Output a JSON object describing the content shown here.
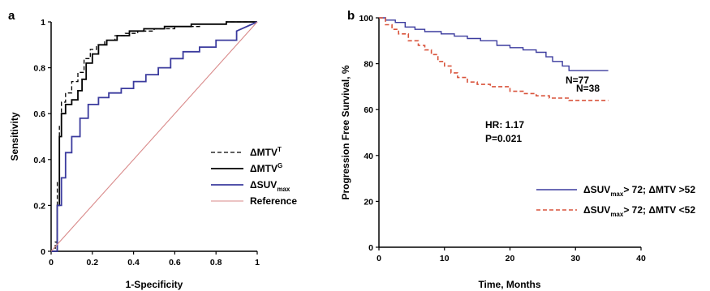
{
  "chart_data": [
    {
      "panel": "a",
      "type": "line",
      "title": "",
      "xlabel": "1-Specificity",
      "ylabel": "Sensitivity",
      "xlim": [
        0,
        1
      ],
      "ylim": [
        0,
        1
      ],
      "xticks": [
        "0",
        "0.2",
        "0.4",
        "0.6",
        "0.8",
        "1"
      ],
      "yticks": [
        "0",
        "0.2",
        "0.4",
        "0.6",
        "0.8",
        "1"
      ],
      "grid": false,
      "legend_position": "bottom-right",
      "series": [
        {
          "name": "ΔMTV",
          "name_sup": "T",
          "color": "#000000",
          "style": "dashed",
          "x": [
            0,
            0.02,
            0.02,
            0.03,
            0.03,
            0.04,
            0.04,
            0.05,
            0.05,
            0.07,
            0.07,
            0.1,
            0.1,
            0.13,
            0.13,
            0.16,
            0.16,
            0.19,
            0.19,
            0.22,
            0.22,
            0.26,
            0.26,
            0.31,
            0.31,
            0.36,
            0.36,
            0.42,
            0.42,
            0.5,
            0.5,
            0.6,
            0.6,
            0.72,
            0.72,
            0.85,
            0.85,
            1
          ],
          "y": [
            0,
            0,
            0.04,
            0.04,
            0.3,
            0.3,
            0.55,
            0.55,
            0.65,
            0.65,
            0.69,
            0.69,
            0.74,
            0.74,
            0.78,
            0.78,
            0.84,
            0.84,
            0.88,
            0.88,
            0.9,
            0.9,
            0.92,
            0.92,
            0.94,
            0.94,
            0.95,
            0.95,
            0.96,
            0.96,
            0.97,
            0.97,
            0.98,
            0.98,
            0.99,
            0.99,
            1,
            1
          ]
        },
        {
          "name": "ΔMTV",
          "name_sup": "G",
          "color": "#000000",
          "style": "solid",
          "x": [
            0,
            0.03,
            0.03,
            0.04,
            0.04,
            0.05,
            0.05,
            0.07,
            0.07,
            0.1,
            0.1,
            0.13,
            0.13,
            0.15,
            0.15,
            0.17,
            0.17,
            0.2,
            0.2,
            0.23,
            0.23,
            0.27,
            0.27,
            0.32,
            0.32,
            0.38,
            0.38,
            0.45,
            0.45,
            0.55,
            0.55,
            0.68,
            0.68,
            0.85,
            0.85,
            1
          ],
          "y": [
            0,
            0,
            0.2,
            0.2,
            0.5,
            0.5,
            0.6,
            0.6,
            0.64,
            0.64,
            0.66,
            0.66,
            0.7,
            0.7,
            0.75,
            0.75,
            0.82,
            0.82,
            0.86,
            0.86,
            0.9,
            0.9,
            0.92,
            0.92,
            0.94,
            0.94,
            0.96,
            0.96,
            0.97,
            0.97,
            0.98,
            0.98,
            0.99,
            0.99,
            1,
            1
          ]
        },
        {
          "name": "ΔSUV",
          "name_sub": "max",
          "color": "#3b3b9e",
          "style": "solid",
          "x": [
            0,
            0.03,
            0.03,
            0.05,
            0.05,
            0.07,
            0.07,
            0.1,
            0.1,
            0.14,
            0.14,
            0.18,
            0.18,
            0.23,
            0.23,
            0.28,
            0.28,
            0.34,
            0.34,
            0.4,
            0.4,
            0.46,
            0.46,
            0.52,
            0.52,
            0.58,
            0.58,
            0.64,
            0.64,
            0.72,
            0.72,
            0.8,
            0.8,
            0.9,
            0.9,
            1
          ],
          "y": [
            0,
            0,
            0.2,
            0.2,
            0.32,
            0.32,
            0.43,
            0.43,
            0.5,
            0.5,
            0.58,
            0.58,
            0.64,
            0.64,
            0.67,
            0.67,
            0.69,
            0.69,
            0.71,
            0.71,
            0.74,
            0.74,
            0.77,
            0.77,
            0.8,
            0.8,
            0.84,
            0.84,
            0.87,
            0.87,
            0.89,
            0.89,
            0.92,
            0.92,
            0.96,
            1
          ]
        },
        {
          "name": "Reference",
          "color": "#d98a8a",
          "style": "solid",
          "x": [
            0,
            1
          ],
          "y": [
            0,
            1
          ]
        }
      ]
    },
    {
      "panel": "b",
      "type": "line",
      "title": "",
      "xlabel": "Time, Months",
      "ylabel": "Progression Free Survival, %",
      "xlim": [
        0,
        40
      ],
      "ylim": [
        0,
        100
      ],
      "xticks": [
        "0",
        "10",
        "20",
        "30",
        "40"
      ],
      "yticks": [
        "0",
        "20",
        "40",
        "60",
        "80",
        "100"
      ],
      "grid": false,
      "legend_position": "bottom-right",
      "annotations": {
        "hr": "HR: 1.17",
        "p": "P=0.021",
        "n_top": "N=77",
        "n_bottom": "N=38"
      },
      "series": [
        {
          "name": "ΔSUV",
          "name_sub": "max",
          "name_rest": "> 72; ΔMTV >52",
          "color": "#3b3b9e",
          "style": "solid",
          "x": [
            0,
            1,
            1,
            2.5,
            2.5,
            4,
            4,
            5.5,
            5.5,
            7,
            7,
            9.5,
            9.5,
            11.5,
            11.5,
            13.5,
            13.5,
            15.5,
            15.5,
            18,
            18,
            20,
            20,
            22,
            22,
            24,
            24,
            25.5,
            25.5,
            26.5,
            26.5,
            28,
            28,
            29,
            29,
            35
          ],
          "y": [
            100,
            100,
            99,
            99,
            98,
            98,
            96,
            96,
            95,
            95,
            94,
            94,
            93,
            93,
            92,
            92,
            91,
            91,
            90,
            90,
            88,
            88,
            87,
            87,
            86,
            86,
            85,
            85,
            83,
            83,
            81,
            81,
            79,
            79,
            77,
            77
          ]
        },
        {
          "name": "ΔSUV",
          "name_sub": "max",
          "name_rest": "> 72; ΔMTV <52",
          "color": "#d9533b",
          "style": "dashed",
          "x": [
            0,
            1,
            1,
            2,
            2,
            3,
            3,
            4.5,
            4.5,
            6,
            6,
            7,
            7,
            8,
            8,
            9,
            9,
            10,
            10,
            11,
            11,
            12,
            12,
            13.5,
            13.5,
            15,
            15,
            17,
            17,
            20,
            20,
            22,
            22,
            24,
            24,
            26,
            26,
            29,
            29,
            35
          ],
          "y": [
            100,
            100,
            97,
            97,
            95,
            95,
            93,
            93,
            90,
            90,
            88,
            88,
            86,
            86,
            84,
            84,
            81,
            81,
            79,
            79,
            76,
            76,
            74,
            74,
            72,
            72,
            71,
            71,
            70,
            70,
            68,
            68,
            67,
            67,
            66,
            66,
            65,
            65,
            64,
            64
          ]
        }
      ]
    }
  ]
}
